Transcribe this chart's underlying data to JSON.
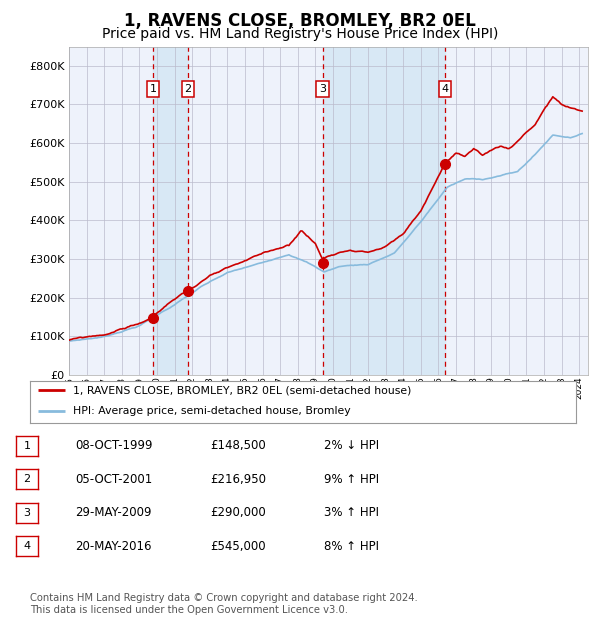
{
  "title": "1, RAVENS CLOSE, BROMLEY, BR2 0EL",
  "subtitle": "Price paid vs. HM Land Registry's House Price Index (HPI)",
  "title_fontsize": 12,
  "subtitle_fontsize": 10,
  "background_color": "#ffffff",
  "plot_bg_color": "#eef2fb",
  "grid_color": "#bbbbcc",
  "hpi_line_color": "#88bbdd",
  "price_line_color": "#cc0000",
  "marker_color": "#cc0000",
  "dashed_line_color": "#cc0000",
  "shade_color": "#d8e8f5",
  "ylim": [
    0,
    850000
  ],
  "yticks": [
    0,
    100000,
    200000,
    300000,
    400000,
    500000,
    600000,
    700000,
    800000
  ],
  "ytick_labels": [
    "£0",
    "£100K",
    "£200K",
    "£300K",
    "£400K",
    "£500K",
    "£600K",
    "£700K",
    "£800K"
  ],
  "x_start_year": 1995,
  "x_end_year": 2024,
  "transactions": [
    {
      "num": 1,
      "date": "08-OCT-1999",
      "year": 1999.77,
      "price": 148500,
      "hpi_diff": "2% ↓ HPI"
    },
    {
      "num": 2,
      "date": "05-OCT-2001",
      "year": 2001.76,
      "price": 216950,
      "hpi_diff": "9% ↑ HPI"
    },
    {
      "num": 3,
      "date": "29-MAY-2009",
      "year": 2009.41,
      "price": 290000,
      "hpi_diff": "3% ↑ HPI"
    },
    {
      "num": 4,
      "date": "20-MAY-2016",
      "year": 2016.38,
      "price": 545000,
      "hpi_diff": "8% ↑ HPI"
    }
  ],
  "legend_entries": [
    "1, RAVENS CLOSE, BROMLEY, BR2 0EL (semi-detached house)",
    "HPI: Average price, semi-detached house, Bromley"
  ],
  "footnote": "Contains HM Land Registry data © Crown copyright and database right 2024.\nThis data is licensed under the Open Government Licence v3.0.",
  "footnote_fontsize": 7.2
}
